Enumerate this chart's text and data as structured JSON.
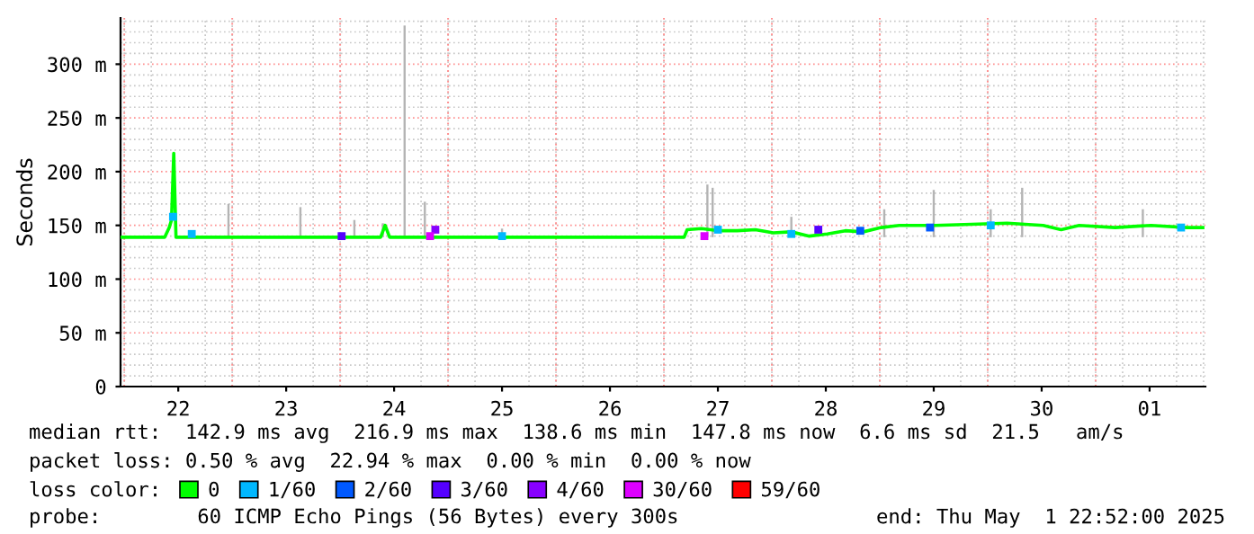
{
  "chart_data": {
    "type": "line",
    "ylabel": "Seconds",
    "xlim": [
      "2025-04-21T23:10",
      "2025-05-02T00:25"
    ],
    "xticks": [
      {
        "value": "2025-04-22T12:00",
        "label": "22"
      },
      {
        "value": "2025-04-23T12:00",
        "label": "23"
      },
      {
        "value": "2025-04-24T12:00",
        "label": "24"
      },
      {
        "value": "2025-04-25T12:00",
        "label": "25"
      },
      {
        "value": "2025-04-26T12:00",
        "label": "26"
      },
      {
        "value": "2025-04-27T12:00",
        "label": "27"
      },
      {
        "value": "2025-04-28T12:00",
        "label": "28"
      },
      {
        "value": "2025-04-29T12:00",
        "label": "29"
      },
      {
        "value": "2025-04-30T12:00",
        "label": "30"
      },
      {
        "value": "2025-05-01T12:00",
        "label": "01"
      }
    ],
    "ylim": [
      0,
      343
    ],
    "yticks": [
      0,
      {
        "value": 50,
        "label": "50 m"
      },
      {
        "value": 100,
        "label": "100 m"
      },
      {
        "value": 150,
        "label": "150 m"
      },
      {
        "value": 200,
        "label": "200 m"
      },
      {
        "value": 250,
        "label": "250 m"
      },
      {
        "value": 300,
        "label": "300 m"
      }
    ],
    "ref_lines": [
      {
        "axis": "x",
        "value": "2025-04-22",
        "color": "#ff9090",
        "line_style": "dotted"
      },
      {
        "axis": "x",
        "value": "2025-04-23",
        "color": "#ff9090",
        "line_style": "dotted"
      },
      {
        "axis": "x",
        "value": "2025-04-24",
        "color": "#ff9090",
        "line_style": "dotted"
      },
      {
        "axis": "x",
        "value": "2025-04-25",
        "color": "#ff9090",
        "line_style": "dotted"
      },
      {
        "axis": "x",
        "value": "2025-04-26",
        "color": "#ff9090",
        "line_style": "dotted"
      },
      {
        "axis": "x",
        "value": "2025-04-27",
        "color": "#ff9090",
        "line_style": "dotted"
      },
      {
        "axis": "x",
        "value": "2025-04-28",
        "color": "#ff9090",
        "line_style": "dotted"
      },
      {
        "axis": "x",
        "value": "2025-04-29",
        "color": "#ff9090",
        "line_style": "dotted"
      },
      {
        "axis": "x",
        "value": "2025-04-30",
        "color": "#ff9090",
        "line_style": "dotted"
      },
      {
        "axis": "x",
        "value": "2025-05-01",
        "color": "#ff9090",
        "line_style": "dotted"
      }
    ],
    "grid": true,
    "legend": "bottom",
    "legend_title": "loss color:",
    "series": [
      {
        "type": "bar",
        "color": "#b4b4b4",
        "x": [
          "2025-04-22T23:10",
          "2025-04-23T15:10",
          "2025-04-24T03:10",
          "2025-04-24T09:30",
          "2025-04-24T14:20",
          "2025-04-24T18:50",
          "2025-04-25T12:00",
          "2025-04-27T09:40",
          "2025-04-27T10:50",
          "2025-04-28T04:20",
          "2025-04-29T01:00",
          "2025-04-29T12:00",
          "2025-04-30T00:40",
          "2025-04-30T07:40",
          "2025-05-01T10:30"
        ],
        "base": [
          139,
          139,
          139,
          139,
          139,
          139,
          139,
          139,
          139,
          139,
          139,
          139,
          139,
          139,
          139
        ],
        "values": [
          31,
          28,
          16,
          13,
          197,
          33,
          8,
          49,
          46,
          19,
          26,
          44,
          26,
          46,
          26
        ]
      },
      {
        "name": "0",
        "color": "#00ff00",
        "x": [
          "2025-04-21T23:10",
          "2025-04-22T09:00",
          "2025-04-22T10:00",
          "2025-04-22T10:30",
          "2025-04-22T11:00",
          "2025-04-22T11:30",
          "2025-04-24T09:00",
          "2025-04-24T10:00",
          "2025-04-24T11:00",
          "2025-04-27T04:30",
          "2025-04-27T05:10",
          "2025-04-27T08:20",
          "2025-04-27T12:20",
          "2025-04-27T16:20",
          "2025-04-27T20:20",
          "2025-04-28T00:20",
          "2025-04-28T04:20",
          "2025-04-28T08:20",
          "2025-04-28T12:20",
          "2025-04-28T16:20",
          "2025-04-28T20:20",
          "2025-04-29T00:20",
          "2025-04-29T04:20",
          "2025-04-29T12:20",
          "2025-04-29T20:20",
          "2025-04-30T04:20",
          "2025-04-30T12:20",
          "2025-04-30T16:20",
          "2025-04-30T20:20",
          "2025-05-01T04:20",
          "2025-05-01T12:20",
          "2025-05-01T20:20",
          "2025-05-01T23:50"
        ],
        "values": [
          139,
          139,
          148,
          155,
          217,
          139,
          139,
          150,
          139,
          139,
          146,
          147,
          145,
          145,
          146,
          143,
          144,
          140,
          142,
          145,
          144,
          148,
          150,
          150,
          151,
          152,
          150,
          146,
          150,
          148,
          150,
          148,
          148
        ]
      },
      {
        "name": "1/60",
        "type": "scatter",
        "marker": "square",
        "color": "#00b8ff",
        "x": [
          "2025-04-22T10:50",
          "2025-04-22T15:00",
          "2025-04-25T12:00",
          "2025-04-27T12:00",
          "2025-04-28T04:20",
          "2025-04-30T00:40",
          "2025-05-01T19:00"
        ],
        "values": [
          158,
          142,
          140,
          146,
          142,
          150,
          148
        ]
      },
      {
        "name": "2/60",
        "type": "scatter",
        "marker": "square",
        "color": "#0059ff",
        "x": [
          "2025-04-28T19:40",
          "2025-04-29T11:10"
        ],
        "values": [
          145,
          148
        ]
      },
      {
        "name": "3/60",
        "type": "scatter",
        "marker": "square",
        "color": "#5500ff",
        "x": [
          "2025-04-24T00:20",
          "2025-04-28T10:20"
        ],
        "values": [
          140,
          146
        ]
      },
      {
        "name": "4/60",
        "type": "scatter",
        "marker": "square",
        "color": "#8800ff",
        "x": [
          "2025-04-24T21:10"
        ],
        "values": [
          146
        ]
      },
      {
        "name": "30/60",
        "type": "scatter",
        "marker": "square",
        "color": "#dd00ff",
        "x": [
          "2025-04-24T20:00",
          "2025-04-27T09:00"
        ],
        "values": [
          140,
          140
        ]
      },
      {
        "name": "59/60",
        "type": "scatter",
        "marker": "square",
        "color": "#ff0000"
      }
    ],
    "annotations": [
      "median rtt:  142.9 ms avg  216.9 ms max  138.6 ms min  147.8 ms now  6.6 ms sd  21.5   am/s",
      "packet loss: 0.50 % avg  22.94 % max  0.00 % min  0.00 % now",
      "probe:        60 ICMP Echo Pings (56 Bytes) every 300s",
      "end: Thu May  1 22:52:00 2025"
    ]
  }
}
